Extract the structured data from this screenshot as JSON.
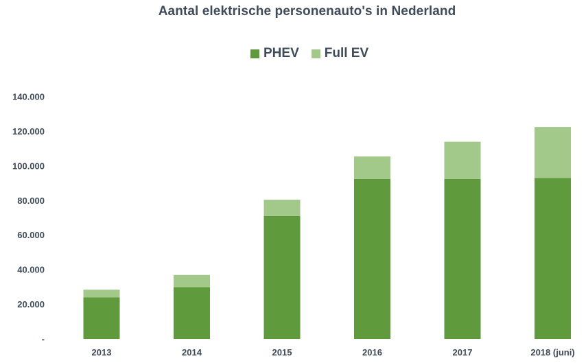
{
  "chart_data": {
    "type": "bar",
    "stacked": true,
    "title": "Aantal elektrische personenauto's in Nederland",
    "categories": [
      "2013",
      "2014",
      "2015",
      "2016",
      "2017",
      "2018 (juni)"
    ],
    "series": [
      {
        "name": "PHEV",
        "color": "#5f9a3d",
        "values": [
          24000,
          30000,
          71000,
          92500,
          92500,
          93000
        ]
      },
      {
        "name": "Full EV",
        "color": "#a3c98a",
        "values": [
          4500,
          7000,
          9500,
          13000,
          21500,
          29500
        ]
      }
    ],
    "ylim": [
      0,
      140000
    ],
    "yticks": [
      {
        "value": 0,
        "label": "-"
      },
      {
        "value": 20000,
        "label": "20.000"
      },
      {
        "value": 40000,
        "label": "40.000"
      },
      {
        "value": 60000,
        "label": "60.000"
      },
      {
        "value": 80000,
        "label": "80.000"
      },
      {
        "value": 100000,
        "label": "100.000"
      },
      {
        "value": 120000,
        "label": "120.000"
      },
      {
        "value": 140000,
        "label": "140.000"
      }
    ],
    "xlabel": "",
    "ylabel": "",
    "grid": false,
    "legend_position": "top-center"
  }
}
